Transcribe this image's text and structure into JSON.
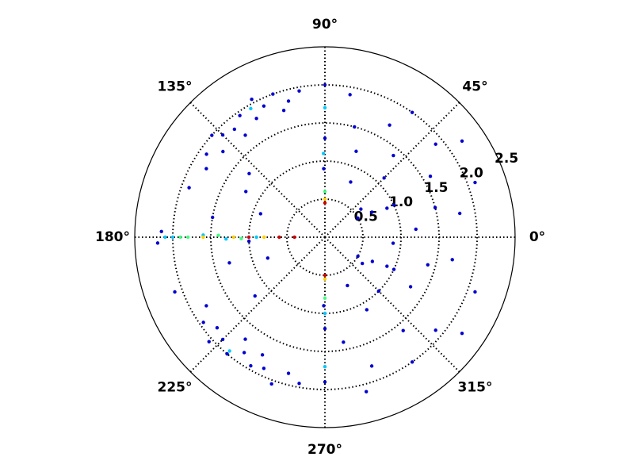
{
  "chart_data": {
    "type": "polar-scatter",
    "rlim": [
      0,
      2.5
    ],
    "rticks": [
      0.5,
      1.0,
      1.5,
      2.0,
      2.5
    ],
    "rtick_labels": [
      "0.5",
      "1.0",
      "1.5",
      "2.0",
      "2.5"
    ],
    "thetaticks": [
      {
        "value": 0,
        "label": "0°"
      },
      {
        "value": 45,
        "label": "45°"
      },
      {
        "value": 90,
        "label": "90°"
      },
      {
        "value": 135,
        "label": "135°"
      },
      {
        "value": 180,
        "label": "180°"
      },
      {
        "value": 225,
        "label": "225°"
      },
      {
        "value": 270,
        "label": "270°"
      },
      {
        "value": 315,
        "label": "315°"
      }
    ],
    "grid": true,
    "series": [
      {
        "color": "#0000d0",
        "x": [
          100,
          105,
          110,
          115,
          120,
          125,
          130,
          135,
          140,
          145,
          150,
          118,
          128,
          108,
          138,
          210,
          215,
          220,
          225,
          230,
          235,
          240,
          245,
          250,
          255,
          260,
          232,
          242,
          222,
          10,
          20,
          30,
          40,
          50,
          60,
          70,
          80,
          5,
          15,
          25,
          35,
          45,
          55,
          65,
          75,
          350,
          340,
          330,
          320,
          310,
          300,
          290,
          280,
          355,
          345,
          335,
          325,
          315,
          305,
          295,
          285,
          30,
          28,
          25,
          330,
          333,
          335,
          38,
          325,
          150,
          160,
          170,
          195,
          200,
          160,
          200,
          140,
          220,
          178,
          182,
          183,
          90,
          90,
          270,
          270,
          91,
          269
        ],
        "values": [
          1.95,
          1.85,
          2.0,
          1.9,
          1.8,
          1.95,
          1.85,
          1.9,
          1.75,
          1.9,
          1.8,
          2.05,
          1.7,
          1.75,
          2.0,
          1.8,
          1.95,
          1.85,
          1.9,
          2.0,
          1.85,
          1.95,
          1.9,
          2.05,
          1.85,
          1.95,
          1.7,
          1.75,
          2.05,
          1.8,
          2.1,
          1.6,
          1.9,
          1.4,
          1.7,
          1.2,
          1.9,
          1.2,
          1.5,
          0.9,
          2.2,
          1.1,
          2.0,
          0.8,
          1.5,
          1.7,
          2.1,
          1.3,
          1.9,
          1.6,
          1.1,
          1.8,
          1.4,
          0.9,
          1.4,
          0.9,
          2.2,
          1.0,
          2.0,
          0.7,
          2.1,
          0.5,
          0.7,
          1.0,
          0.5,
          0.7,
          1.0,
          0.6,
          0.6,
          1.2,
          0.9,
          1.5,
          1.3,
          0.8,
          1.9,
          2.1,
          1.3,
          1.2,
          2.15,
          2.2,
          1.0,
          2.0,
          1.3,
          1.9,
          1.2,
          0.9,
          0.9
        ]
      },
      {
        "color": "#00c8ff",
        "x": [
          180,
          179,
          181,
          180,
          90,
          91,
          270,
          270,
          230,
          120,
          180
        ],
        "values": [
          2.1,
          1.6,
          1.3,
          0.9,
          1.7,
          1.1,
          1.0,
          1.7,
          1.95,
          1.95,
          2.0
        ]
      },
      {
        "color": "#40ff80",
        "x": [
          180,
          179,
          181,
          90,
          270,
          180
        ],
        "values": [
          1.8,
          1.4,
          1.1,
          0.6,
          0.8,
          1.9
        ]
      },
      {
        "color": "#ffd000",
        "x": [
          180,
          180,
          180,
          90,
          270
        ],
        "values": [
          1.2,
          0.8,
          1.6,
          0.5,
          0.55
        ]
      },
      {
        "color": "#d00000",
        "x": [
          180,
          180,
          180,
          90,
          270
        ],
        "values": [
          0.6,
          0.4,
          1.0,
          0.45,
          0.5
        ]
      }
    ]
  }
}
